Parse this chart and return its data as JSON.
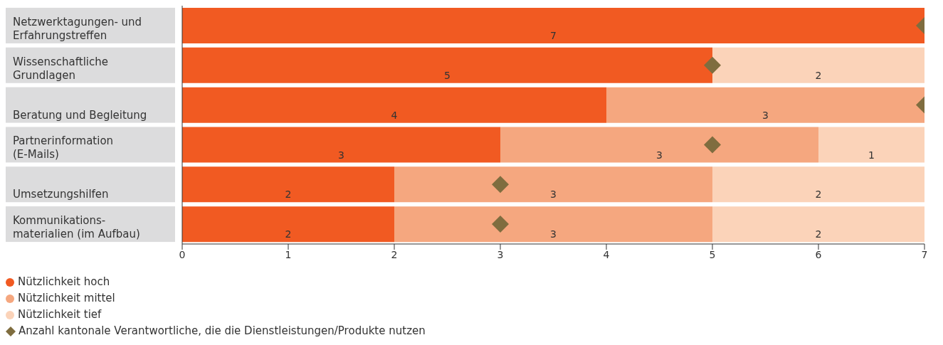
{
  "chart_data": {
    "type": "bar",
    "orientation": "horizontal",
    "stacked": true,
    "legend": "bottom left",
    "categories": [
      "Netzwerktagungen- und\nErfahrungstreffen",
      "Wissenschaftliche\nGrundlagen",
      "Beratung und Begleitung",
      "Partnerinformation\n(E-Mails)",
      "Umsetzungshilfen",
      "Kommunikations-\nmaterialien (im Aufbau)"
    ],
    "xlim": [
      0,
      7
    ],
    "xticks": [
      0,
      1,
      2,
      3,
      4,
      5,
      6,
      7
    ],
    "series": [
      {
        "name": "Nützlichkeit hoch",
        "color": "#f15a22",
        "values": [
          7,
          5,
          4,
          3,
          2,
          2
        ],
        "value_labels": [
          "7",
          "5",
          "4",
          "3",
          "2",
          "2"
        ]
      },
      {
        "name": "Nützlichkeit mittel",
        "color": "#f5a77f",
        "values": [
          null,
          null,
          3,
          3,
          3,
          3
        ],
        "value_labels": [
          null,
          null,
          "3",
          "3",
          "3",
          "3"
        ]
      },
      {
        "name": "Nützlichkeit tief",
        "color": "#fbd3b9",
        "values": [
          null,
          2,
          null,
          1,
          2,
          2
        ],
        "value_labels": [
          null,
          "2",
          null,
          "1",
          "2",
          "2"
        ]
      },
      {
        "name": "Anzahl kantonale Verantwortliche, die die Dienstleistungen/Produkte nutzen",
        "type": "scatter",
        "marker": "diamond",
        "color": "#7f6d3f",
        "values": [
          7,
          5,
          7,
          5,
          3,
          3
        ]
      }
    ]
  }
}
